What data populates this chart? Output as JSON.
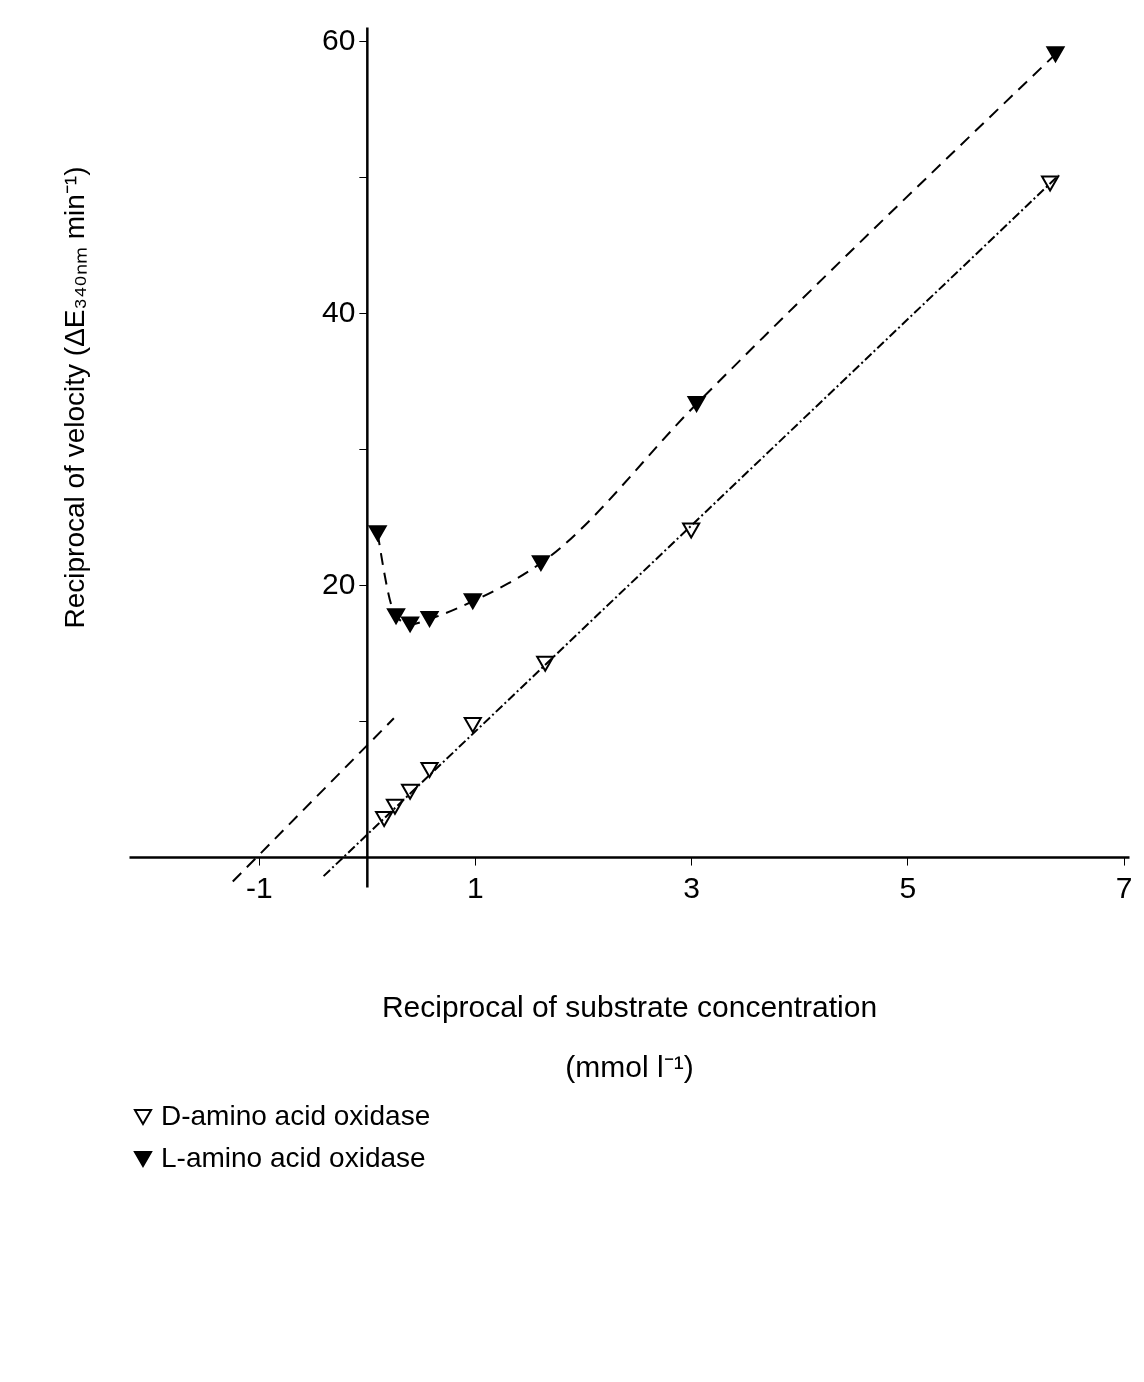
{
  "chart_data": {
    "type": "scatter",
    "xlabel": "Reciprocal of substrate concentration\n(mmol l⁻¹)",
    "ylabel": "Reciprocal of velocity (ΔE₃₄₀ₙₘ min⁻¹)",
    "xlim": [
      -2.2,
      7.05
    ],
    "xticks": [
      -1,
      1,
      3,
      5,
      7
    ],
    "ylim": [
      -2.2,
      61
    ],
    "yticks": [
      {
        "value": 10,
        "label": null
      },
      20,
      {
        "value": 30,
        "label": null
      },
      40,
      {
        "value": 50,
        "label": null
      },
      60
    ],
    "grid": false,
    "legend": "bottom",
    "series": [
      {
        "name": "D-amino acid oxidase",
        "marker": "triangle",
        "color": "#000000",
        "x": [
          0.16,
          0.26,
          0.4,
          0.58,
          0.98,
          1.65,
          3.0,
          6.32
        ],
        "values": [
          2.8,
          3.7,
          4.8,
          6.4,
          9.7,
          14.2,
          24.0,
          49.5
        ]
      },
      {
        "name": "L-amino acid oxidase",
        "type": "line",
        "marker": "triangle",
        "line_style": "dashed",
        "color": "#000000",
        "x": [
          0.1,
          0.27,
          0.4,
          0.58,
          0.98,
          1.61,
          3.05,
          6.37
        ],
        "values": [
          23.8,
          17.7,
          17.1,
          17.5,
          18.8,
          21.6,
          33.3,
          59.0
        ]
      },
      {
        "type": "line",
        "marker": "none",
        "line_style": "dotted",
        "color": "#000000",
        "x": [
          -0.4,
          6.4
        ],
        "values": [
          -1.4,
          50.1
        ]
      },
      {
        "type": "line",
        "marker": "none",
        "line_style": "dashed",
        "color": "#000000",
        "x": [
          -1.24,
          0.25
        ],
        "values": [
          -1.8,
          10.2
        ]
      }
    ]
  }
}
